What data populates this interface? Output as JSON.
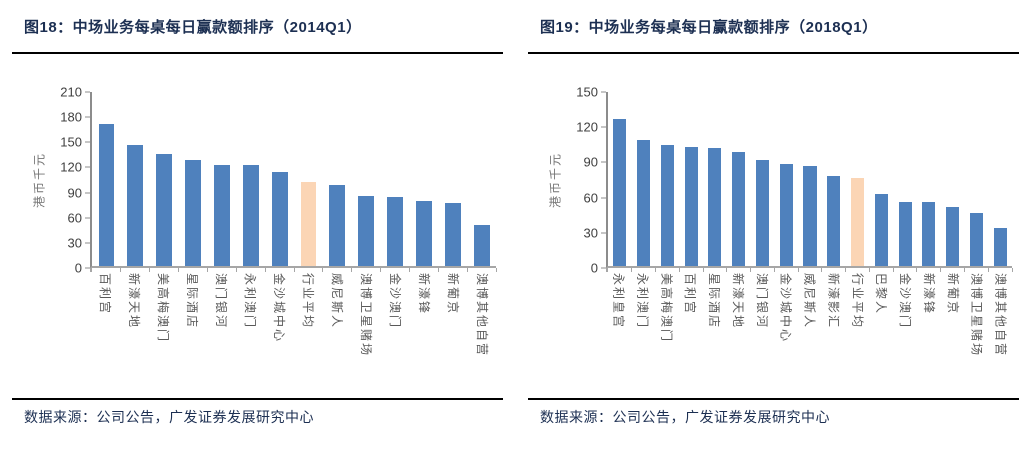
{
  "figures": [
    {
      "title": "图18：中场业务每桌每日赢款额排序（2014Q1）",
      "ylabel": "港币千元",
      "source": "数据来源：公司公告，广发证券发展研究中心"
    },
    {
      "title": "图19：中场业务每桌每日赢款额排序（2018Q1）",
      "ylabel": "港币千元",
      "source": "数据来源：公司公告，广发证券发展研究中心"
    }
  ],
  "chart_data": [
    {
      "type": "bar",
      "title": "图18：中场业务每桌每日赢款额排序（2014Q1）",
      "xlabel": "",
      "ylabel": "港币千元",
      "ylim": [
        0,
        210
      ],
      "yticks": [
        0,
        30,
        60,
        90,
        120,
        150,
        180,
        210
      ],
      "grid": false,
      "legend": "none",
      "bar_color": "#4f81bd",
      "highlight_color": "#fbd5b5",
      "highlight_index": 7,
      "highlight_label": "行业平均",
      "categories": [
        "百利宫",
        "新濠天地",
        "美高梅澳门",
        "星际酒店",
        "澳门银河",
        "永利澳门",
        "金沙城中心",
        "行业平均",
        "威尼斯人",
        "澳博卫星赌场",
        "金沙澳门",
        "新濠锋",
        "新葡京",
        "澳博其他自营"
      ],
      "values": [
        172,
        146,
        135,
        128,
        122,
        122,
        113,
        102,
        98,
        85,
        83,
        78,
        76,
        50
      ]
    },
    {
      "type": "bar",
      "title": "图19：中场业务每桌每日赢款额排序（2018Q1）",
      "xlabel": "",
      "ylabel": "港币千元",
      "ylim": [
        0,
        150
      ],
      "yticks": [
        0,
        30,
        60,
        90,
        120,
        150
      ],
      "grid": false,
      "legend": "none",
      "bar_color": "#4f81bd",
      "highlight_color": "#fbd5b5",
      "highlight_index": 10,
      "highlight_label": "行业平均",
      "categories": [
        "永利皇宫",
        "永利澳门",
        "美高梅澳门",
        "百利宫",
        "星际酒店",
        "新濠天地",
        "澳门银河",
        "金沙城中心",
        "威尼斯人",
        "新濠影汇",
        "行业平均",
        "巴黎人",
        "金沙澳门",
        "新濠锋",
        "新葡京",
        "澳博卫星赌场",
        "澳博其他自营"
      ],
      "values": [
        127,
        109,
        104,
        103,
        102,
        98,
        91,
        88,
        86,
        78,
        76,
        62,
        55,
        55,
        51,
        46,
        33
      ]
    }
  ]
}
